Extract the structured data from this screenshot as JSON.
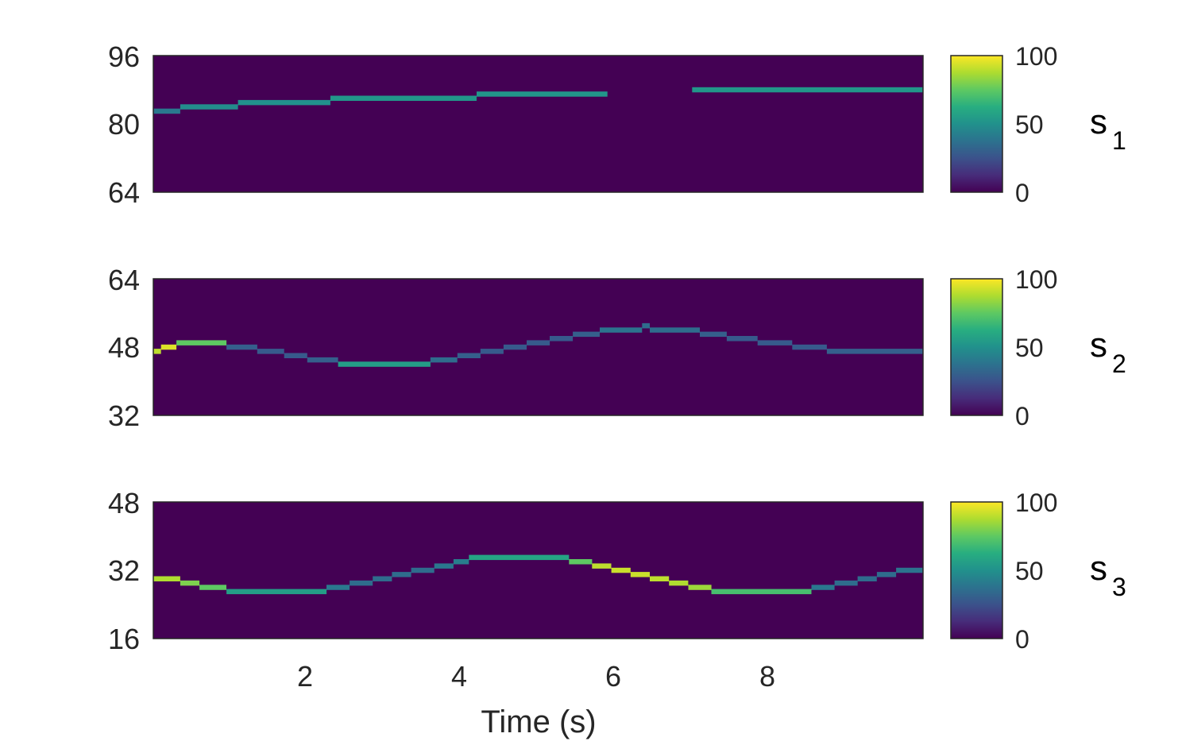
{
  "chart_data": {
    "type": "heatmap",
    "xlabel": "Time (s)",
    "xlim": [
      0.1,
      10.1
    ],
    "xticks": [
      2,
      4,
      6,
      8
    ],
    "colormap": "viridis",
    "background_color": "#440154",
    "panels": [
      {
        "name": "s",
        "subscript": "1",
        "ylim": [
          64,
          96
        ],
        "yticks": [
          96,
          80,
          64
        ],
        "colorbar": {
          "min": 0,
          "max": 100,
          "ticks": [
            100,
            50,
            0
          ]
        },
        "segments": [
          {
            "x0": 0.1,
            "x1": 0.45,
            "y": 83,
            "value": 40
          },
          {
            "x0": 0.45,
            "x1": 1.2,
            "y": 84,
            "value": 48
          },
          {
            "x0": 1.2,
            "x1": 2.4,
            "y": 85,
            "value": 50
          },
          {
            "x0": 2.4,
            "x1": 4.3,
            "y": 86,
            "value": 52
          },
          {
            "x0": 4.3,
            "x1": 6.0,
            "y": 87,
            "value": 52
          },
          {
            "x0": 7.1,
            "x1": 10.1,
            "y": 88,
            "value": 52
          }
        ]
      },
      {
        "name": "s",
        "subscript": "2",
        "ylim": [
          32,
          64
        ],
        "yticks": [
          64,
          48,
          32
        ],
        "colorbar": {
          "min": 0,
          "max": 100,
          "ticks": [
            100,
            50,
            0
          ]
        },
        "segments": [
          {
            "x0": 0.1,
            "x1": 0.2,
            "y": 47,
            "value": 90
          },
          {
            "x0": 0.2,
            "x1": 0.4,
            "y": 48,
            "value": 95
          },
          {
            "x0": 0.4,
            "x1": 1.05,
            "y": 49,
            "value": 75
          },
          {
            "x0": 1.05,
            "x1": 1.45,
            "y": 48,
            "value": 30
          },
          {
            "x0": 1.45,
            "x1": 1.8,
            "y": 47,
            "value": 28
          },
          {
            "x0": 1.8,
            "x1": 2.1,
            "y": 46,
            "value": 28
          },
          {
            "x0": 2.1,
            "x1": 2.5,
            "y": 45,
            "value": 30
          },
          {
            "x0": 2.5,
            "x1": 3.7,
            "y": 44,
            "value": 55
          },
          {
            "x0": 3.7,
            "x1": 4.05,
            "y": 45,
            "value": 35
          },
          {
            "x0": 4.05,
            "x1": 4.35,
            "y": 46,
            "value": 30
          },
          {
            "x0": 4.35,
            "x1": 4.65,
            "y": 47,
            "value": 28
          },
          {
            "x0": 4.65,
            "x1": 4.95,
            "y": 48,
            "value": 28
          },
          {
            "x0": 4.95,
            "x1": 5.25,
            "y": 49,
            "value": 28
          },
          {
            "x0": 5.25,
            "x1": 5.55,
            "y": 50,
            "value": 28
          },
          {
            "x0": 5.55,
            "x1": 5.9,
            "y": 51,
            "value": 30
          },
          {
            "x0": 5.9,
            "x1": 6.45,
            "y": 52,
            "value": 38
          },
          {
            "x0": 6.45,
            "x1": 6.55,
            "y": 53,
            "value": 35
          },
          {
            "x0": 6.55,
            "x1": 7.2,
            "y": 52,
            "value": 35
          },
          {
            "x0": 7.2,
            "x1": 7.55,
            "y": 51,
            "value": 30
          },
          {
            "x0": 7.55,
            "x1": 7.95,
            "y": 50,
            "value": 28
          },
          {
            "x0": 7.95,
            "x1": 8.4,
            "y": 49,
            "value": 28
          },
          {
            "x0": 8.4,
            "x1": 8.85,
            "y": 48,
            "value": 28
          },
          {
            "x0": 8.85,
            "x1": 10.1,
            "y": 47,
            "value": 30
          }
        ]
      },
      {
        "name": "s",
        "subscript": "3",
        "ylim": [
          16,
          48
        ],
        "yticks": [
          48,
          32,
          16
        ],
        "colorbar": {
          "min": 0,
          "max": 100,
          "ticks": [
            100,
            50,
            0
          ]
        },
        "segments": [
          {
            "x0": 0.1,
            "x1": 0.45,
            "y": 30,
            "value": 88
          },
          {
            "x0": 0.45,
            "x1": 0.7,
            "y": 29,
            "value": 80
          },
          {
            "x0": 0.7,
            "x1": 1.05,
            "y": 28,
            "value": 75
          },
          {
            "x0": 1.05,
            "x1": 2.35,
            "y": 27,
            "value": 55
          },
          {
            "x0": 2.35,
            "x1": 2.65,
            "y": 28,
            "value": 40
          },
          {
            "x0": 2.65,
            "x1": 2.95,
            "y": 29,
            "value": 35
          },
          {
            "x0": 2.95,
            "x1": 3.2,
            "y": 30,
            "value": 35
          },
          {
            "x0": 3.2,
            "x1": 3.45,
            "y": 31,
            "value": 35
          },
          {
            "x0": 3.45,
            "x1": 3.75,
            "y": 32,
            "value": 35
          },
          {
            "x0": 3.75,
            "x1": 4.0,
            "y": 33,
            "value": 40
          },
          {
            "x0": 4.0,
            "x1": 4.2,
            "y": 34,
            "value": 42
          },
          {
            "x0": 4.2,
            "x1": 5.5,
            "y": 35,
            "value": 58
          },
          {
            "x0": 5.5,
            "x1": 5.8,
            "y": 34,
            "value": 75
          },
          {
            "x0": 5.8,
            "x1": 6.05,
            "y": 33,
            "value": 90
          },
          {
            "x0": 6.05,
            "x1": 6.3,
            "y": 32,
            "value": 92
          },
          {
            "x0": 6.3,
            "x1": 6.55,
            "y": 31,
            "value": 92
          },
          {
            "x0": 6.55,
            "x1": 6.8,
            "y": 30,
            "value": 90
          },
          {
            "x0": 6.8,
            "x1": 7.05,
            "y": 29,
            "value": 88
          },
          {
            "x0": 7.05,
            "x1": 7.35,
            "y": 28,
            "value": 85
          },
          {
            "x0": 7.35,
            "x1": 8.65,
            "y": 27,
            "value": 70
          },
          {
            "x0": 8.65,
            "x1": 8.95,
            "y": 28,
            "value": 40
          },
          {
            "x0": 8.95,
            "x1": 9.25,
            "y": 29,
            "value": 35
          },
          {
            "x0": 9.25,
            "x1": 9.5,
            "y": 30,
            "value": 35
          },
          {
            "x0": 9.5,
            "x1": 9.75,
            "y": 31,
            "value": 35
          },
          {
            "x0": 9.75,
            "x1": 10.1,
            "y": 32,
            "value": 38
          }
        ]
      }
    ]
  }
}
